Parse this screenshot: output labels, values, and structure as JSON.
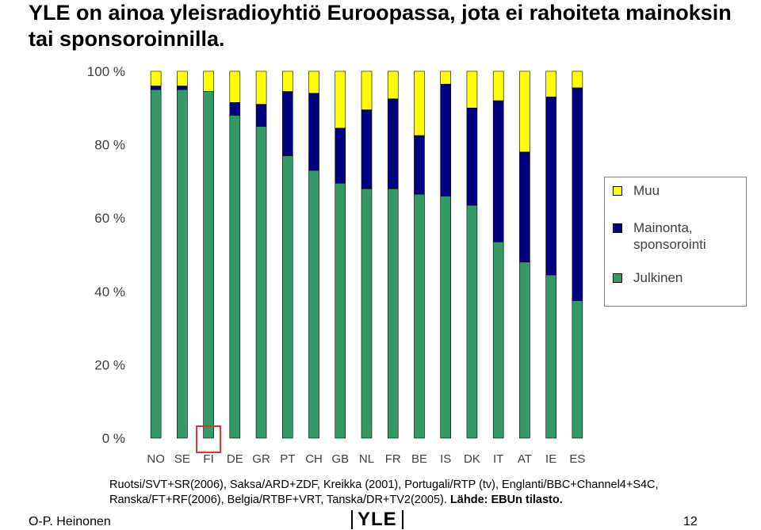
{
  "title": "YLE on ainoa yleisradioyhtiö Euroopassa, jota ei rahoiteta mainoksin tai sponsoroinnilla.",
  "chart_data": {
    "type": "bar",
    "stacked": true,
    "percent": true,
    "categories": [
      "NO",
      "SE",
      "FI",
      "DE",
      "GR",
      "PT",
      "CH",
      "GB",
      "NL",
      "FR",
      "BE",
      "IS",
      "DK",
      "IT",
      "AT",
      "IE",
      "ES"
    ],
    "series": [
      {
        "name": "Julkinen",
        "color": "#339966",
        "values": [
          95,
          95,
          94.5,
          88,
          85,
          77,
          73,
          69.5,
          68,
          68,
          66.5,
          66,
          63.5,
          53.5,
          48,
          44.5,
          37.5
        ]
      },
      {
        "name": "Mainonta, sponsorointi",
        "color": "#000080",
        "values": [
          1,
          1,
          0,
          3.5,
          6,
          17.5,
          21,
          15,
          21.5,
          24.5,
          16,
          30.5,
          26.5,
          38.5,
          30,
          48.5,
          58
        ]
      },
      {
        "name": "Muu",
        "color": "#ffff00",
        "values": [
          4,
          4,
          5.5,
          8.5,
          9,
          5.5,
          6,
          15.5,
          10.5,
          7.5,
          17.5,
          3.5,
          10,
          8,
          22,
          7,
          4.5
        ]
      }
    ],
    "ylim": [
      0,
      100
    ],
    "yticks": [
      "0 %",
      "20 %",
      "40 %",
      "60 %",
      "80 %",
      "100 %"
    ],
    "ytick_values": [
      0,
      20,
      40,
      60,
      80,
      100
    ],
    "legend_position": "right",
    "legend_order": [
      "Muu",
      "Mainonta, sponsorointi",
      "Julkinen"
    ],
    "highlighted_category": "FI",
    "highlight_color": "#e03030",
    "grid": false
  },
  "legend": {
    "items": [
      {
        "label": "Muu",
        "color": "#ffff00"
      },
      {
        "label": "Mainonta, sponsorointi",
        "color": "#000080"
      },
      {
        "label": "Julkinen",
        "color": "#339966"
      }
    ]
  },
  "source_note": {
    "line1": "Ruotsi/SVT+SR(2006), Saksa/ARD+ZDF, Kreikka (2001), Portugali/RTP (tv), Englanti/BBC+Channel4+S4C,",
    "line2_plain": "Ranska/FT+RF(2006), Belgia/RTBF+VRT, Tanska/DR+TV2(2005). ",
    "line2_bold": "Lähde: EBUn tilasto."
  },
  "footer": {
    "author": "O-P. Heinonen",
    "logo_text": "YLE",
    "page_number": "12"
  }
}
